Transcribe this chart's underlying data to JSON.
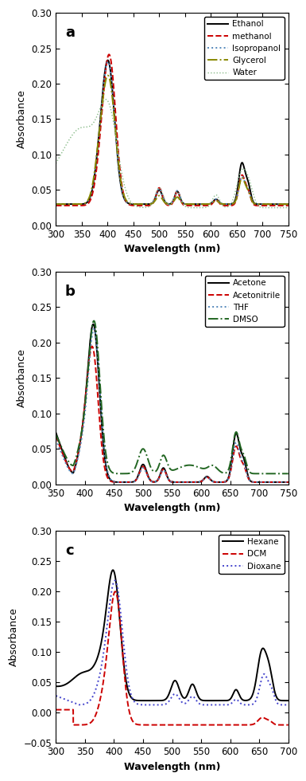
{
  "panel_a": {
    "label": "a",
    "xlim": [
      300,
      750
    ],
    "ylim": [
      0.0,
      0.3
    ],
    "xlabel": "Wavelength (nm)",
    "ylabel": "Absorbance",
    "yticks": [
      0.0,
      0.05,
      0.1,
      0.15,
      0.2,
      0.25,
      0.3
    ],
    "series": [
      {
        "name": "Ethanol",
        "color": "#000000",
        "ls": "-",
        "lw": 1.4
      },
      {
        "name": "methanol",
        "color": "#cc0000",
        "ls": "--",
        "lw": 1.4
      },
      {
        "name": "Isopropanol",
        "color": "#5588bb",
        "ls": ":",
        "lw": 1.4
      },
      {
        "name": "Glycerol",
        "color": "#888800",
        "ls": "-.",
        "lw": 1.4
      },
      {
        "name": "Water",
        "color": "#88bb88",
        "ls": ":",
        "lw": 1.0
      }
    ]
  },
  "panel_b": {
    "label": "b",
    "xlim": [
      350,
      750
    ],
    "ylim": [
      0.0,
      0.3
    ],
    "xlabel": "Wavelength (nm)",
    "ylabel": "Absorbance",
    "yticks": [
      0.0,
      0.05,
      0.1,
      0.15,
      0.2,
      0.25,
      0.3
    ],
    "series": [
      {
        "name": "Acetone",
        "color": "#000000",
        "ls": "-",
        "lw": 1.4
      },
      {
        "name": "Acetonitrile",
        "color": "#cc0000",
        "ls": "--",
        "lw": 1.4
      },
      {
        "name": "THF",
        "color": "#5588bb",
        "ls": ":",
        "lw": 1.4
      },
      {
        "name": "DMSO",
        "color": "#226622",
        "ls": "-.",
        "lw": 1.4
      }
    ]
  },
  "panel_c": {
    "label": "c",
    "xlim": [
      300,
      700
    ],
    "ylim": [
      -0.05,
      0.3
    ],
    "xlabel": "Wavelength (nm)",
    "ylabel": "Absorbance",
    "yticks": [
      -0.05,
      0.0,
      0.05,
      0.1,
      0.15,
      0.2,
      0.25,
      0.3
    ],
    "series": [
      {
        "name": "Hexane",
        "color": "#000000",
        "ls": "-",
        "lw": 1.4
      },
      {
        "name": "DCM",
        "color": "#cc0000",
        "ls": "--",
        "lw": 1.4
      },
      {
        "name": "Dioxane",
        "color": "#4444cc",
        "ls": ":",
        "lw": 1.4
      }
    ]
  }
}
